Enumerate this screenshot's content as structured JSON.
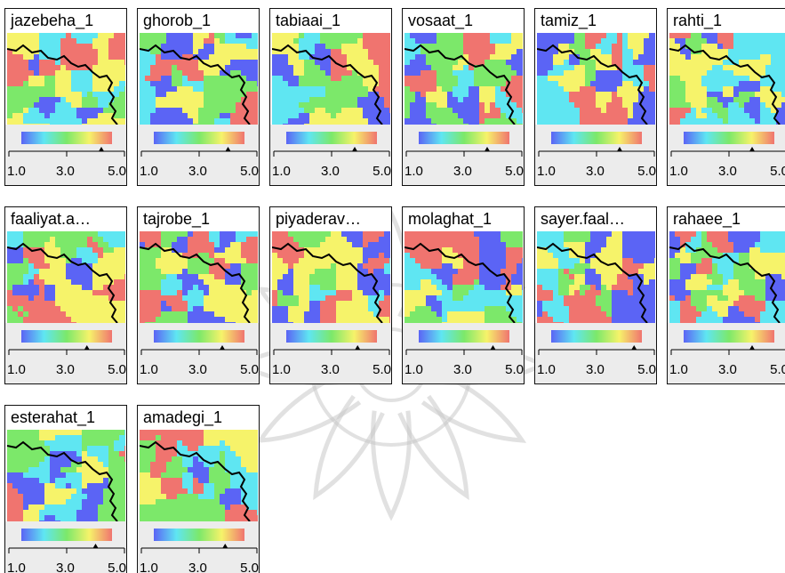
{
  "chart_data": {
    "type": "heatmap",
    "colorscale": [
      "#5b64f5",
      "#5fe6f2",
      "#7ce86a",
      "#f6f36a",
      "#f0746f"
    ],
    "scale_ticks": [
      "1.0",
      "3.0",
      "5.0"
    ],
    "scale_range": [
      1.0,
      5.0
    ],
    "panels": [
      {
        "title": "jazebeha_1",
        "marker": 4.2
      },
      {
        "title": "ghorob_1",
        "marker": 4.0
      },
      {
        "title": "tabiaai_1",
        "marker": 3.8
      },
      {
        "title": "vosaat_1",
        "marker": 3.8
      },
      {
        "title": "tamiz_1",
        "marker": 3.8
      },
      {
        "title": "rahti_1",
        "marker": 3.8
      },
      {
        "title": "faaliyat.a…",
        "marker": 3.7
      },
      {
        "title": "tajrobe_1",
        "marker": 3.8
      },
      {
        "title": "piyaderav…",
        "marker": 3.9
      },
      {
        "title": "molaghat_1",
        "marker": 4.0
      },
      {
        "title": "sayer.faal…",
        "marker": 4.3
      },
      {
        "title": "rahaee_1",
        "marker": 3.8
      },
      {
        "title": "esterahat_1",
        "marker": 4.0
      },
      {
        "title": "amadegi_1",
        "marker": 3.9
      }
    ]
  }
}
